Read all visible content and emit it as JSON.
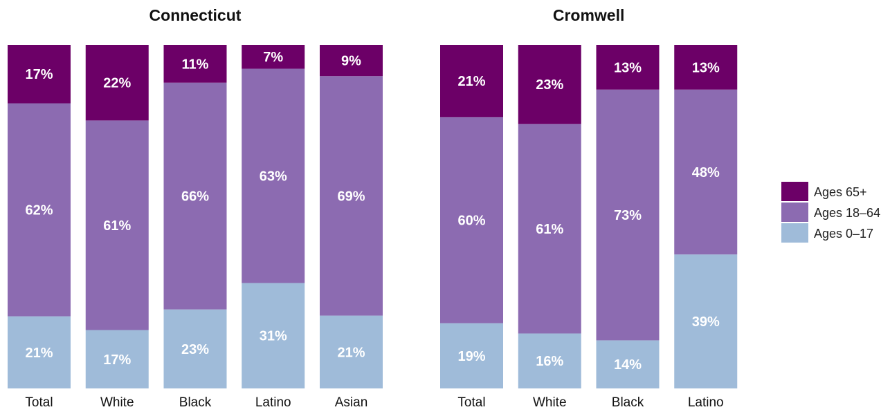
{
  "colors": {
    "Ages 0–17": "#9fbbd9",
    "Ages 18–64": "#8c6bb1",
    "Ages 65+": "#6c0067"
  },
  "legend": [
    "Ages 65+",
    "Ages 18–64",
    "Ages 0–17"
  ],
  "chart_data": [
    {
      "type": "bar",
      "stacked": true,
      "normalized": true,
      "title": "Connecticut",
      "categories": [
        "Total",
        "White",
        "Black",
        "Latino",
        "Asian"
      ],
      "series": [
        {
          "name": "Ages 0–17",
          "values": [
            21,
            17,
            23,
            31,
            21
          ],
          "labels": [
            "21%",
            "17%",
            "23%",
            "31%",
            "21%"
          ]
        },
        {
          "name": "Ages 18–64",
          "values": [
            62,
            61,
            66,
            63,
            69
          ],
          "labels": [
            "62%",
            "61%",
            "66%",
            "63%",
            "69%"
          ]
        },
        {
          "name": "Ages 65+",
          "values": [
            17,
            22,
            11,
            7,
            9
          ],
          "labels": [
            "17%",
            "22%",
            "11%",
            "7%",
            "9%"
          ]
        }
      ],
      "ylim": [
        0,
        100
      ]
    },
    {
      "type": "bar",
      "stacked": true,
      "normalized": true,
      "title": "Cromwell",
      "categories": [
        "Total",
        "White",
        "Black",
        "Latino"
      ],
      "series": [
        {
          "name": "Ages 0–17",
          "values": [
            19,
            16,
            14,
            39
          ],
          "labels": [
            "19%",
            "16%",
            "14%",
            "39%"
          ]
        },
        {
          "name": "Ages 18–64",
          "values": [
            60,
            61,
            73,
            48
          ],
          "labels": [
            "60%",
            "61%",
            "73%",
            "48%"
          ]
        },
        {
          "name": "Ages 65+",
          "values": [
            21,
            23,
            13,
            13
          ],
          "labels": [
            "21%",
            "23%",
            "13%",
            "13%"
          ]
        }
      ],
      "ylim": [
        0,
        100
      ]
    }
  ]
}
